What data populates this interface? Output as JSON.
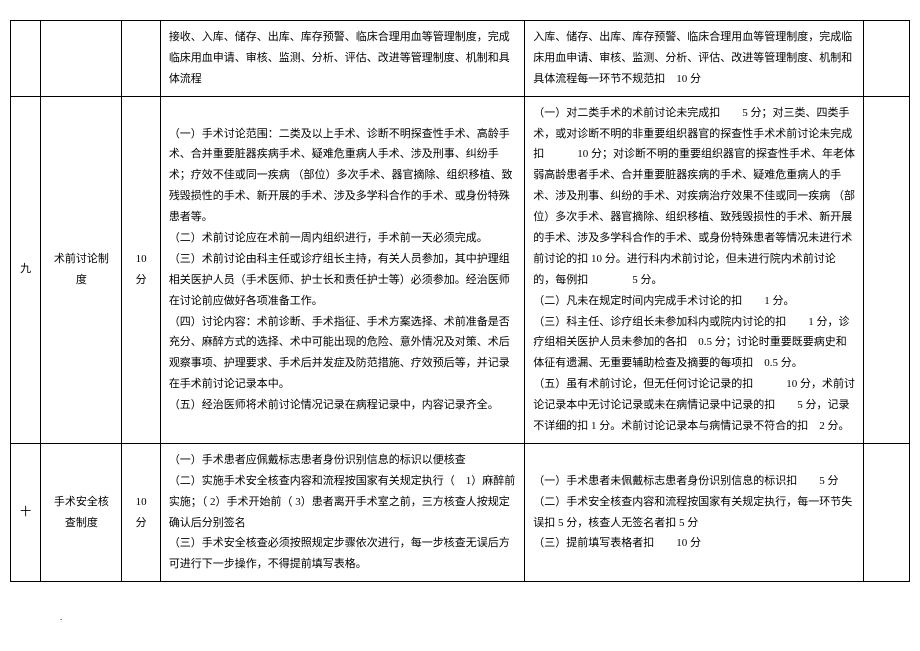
{
  "table": {
    "rows": [
      {
        "seq": "",
        "name": "",
        "score": "",
        "criteria": "接收、入库、储存、出库、库存预警、临床合理用血等管理制度，完成临床用血申请、审核、监测、分析、评估、改进等管理制度、机制和具体流程",
        "deduct": "入库、储存、出库、库存预警、临床合理用血等管理制度，完成临床用血申请、审核、监测、分析、评估、改进等管理制度、机制和具体流程每一环节不规范扣　10 分",
        "last": ""
      },
      {
        "seq": "九",
        "name": "术前讨论制度",
        "score": "10 分",
        "criteria": "（一）手术讨论范围：二类及以上手术、诊断不明探查性手术、高龄手术、合并重要脏器疾病手术、疑难危重病人手术、涉及刑事、纠纷手术；疗效不佳或同一疾病 （部位）多次手术、器官摘除、组织移植、致残毁损性的手术、新开展的手术、涉及多学科合作的手术、或身份特殊患者等。\n（二）术前讨论应在术前一周内组织进行，手术前一天必须完成。\n（三）术前讨论由科主任或诊疗组长主持，有关人员参加，其中护理组相关医护人员（手术医师、护士长和责任护士等）必须参加。经治医师在讨论前应做好各项准备工作。\n（四）讨论内容：术前诊断、手术指征、手术方案选择、术前准备是否充分、麻醉方式的选择、术中可能出现的危险、意外情况及对策、术后观察事项、护理要求、手术后并发症及防范措施、疗效预后等，并记录在手术前讨论记录本中。\n（五）经治医师将术前讨论情况记录在病程记录中，内容记录齐全。",
        "deduct": "（一）对二类手术的术前讨论未完成扣　　5 分；对三类、四类手术，或对诊断不明的非重要组织器官的探查性手术术前讨论未完成扣　　　10 分；对诊断不明的重要组织器官的探查性手术、年老体弱高龄患者手术、合并重要脏器疾病的手术、疑难危重病人的手术、涉及刑事、纠纷的手术、对疾病治疗效果不佳或同一疾病 （部位）多次手术、器官摘除、组织移植、致残毁损性的手术、新开展的手术、涉及多学科合作的手术、或身份特殊患者等情况未进行术前讨论的扣 10 分。进行科内术前讨论，但未进行院内术前讨论的，每例扣　　　　5 分。\n（二）凡未在规定时间内完成手术讨论的扣　　1 分。\n（三）科主任、诊疗组长未参加科内或院内讨论的扣　　1 分，诊疗组相关医护人员未参加的各扣　0.5 分；讨论时重要既要病史和体征有遗漏、无重要辅助检查及摘要的每项扣　0.5 分。\n（五）虽有术前讨论，但无任何讨论记录的扣　　　10 分，术前讨论记录本中无讨论记录或未在病情记录中记录的扣　　5 分，记录不详细的扣 1 分。术前讨论记录本与病情记录不符合的扣　2 分。",
        "last": ""
      },
      {
        "seq": "十",
        "name": "手术安全核查制度",
        "score": "10 分",
        "criteria": "（一）手术患者应佩戴标志患者身份识别信息的标识以便核查\n（二）实施手术安全核查内容和流程按国家有关规定执行（　1）麻醉前实施；（ 2）手术开始前（ 3）患者离开手术室之前，三方核查人按规定确认后分别签名\n（三）手术安全核查必须按照规定步骤依次进行，每一步核查无误后方可进行下一步操作，不得提前填写表格。",
        "deduct": "（一）手术患者未佩戴标志患者身份识别信息的标识扣　　5 分\n（二）手术安全核查内容和流程按国家有关规定执行，每一环节失误扣 5 分，核查人无签名者扣 5 分\n（三）提前填写表格者扣　　10 分",
        "last": ""
      }
    ]
  },
  "footer": "."
}
